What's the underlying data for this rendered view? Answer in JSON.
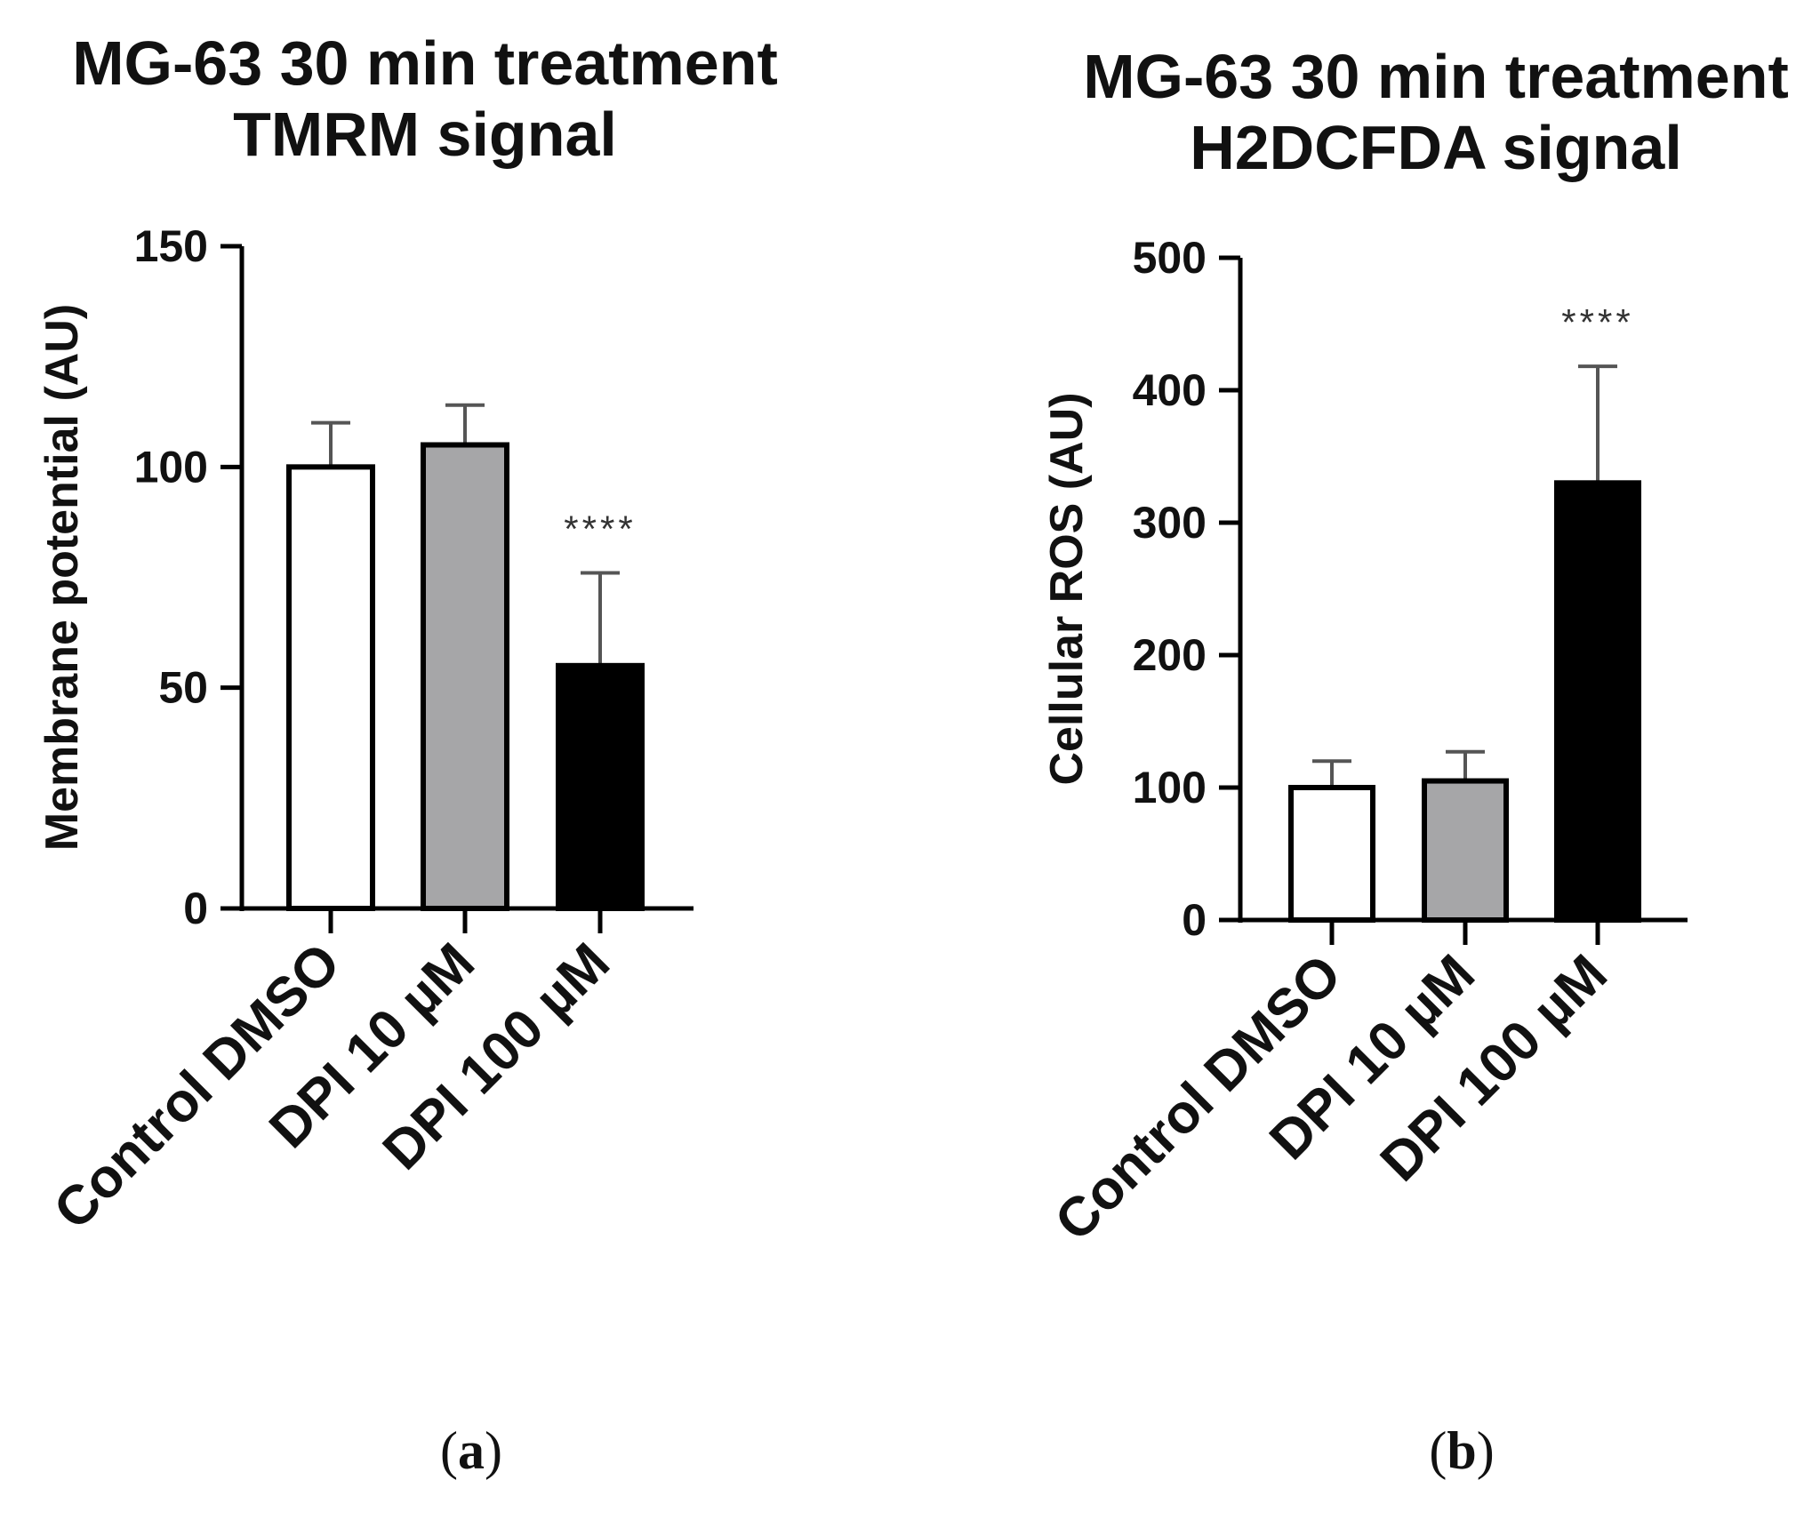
{
  "chart_data": [
    {
      "id": "a",
      "type": "bar",
      "title_lines": [
        "MG-63 30 min treatment",
        "TMRM signal"
      ],
      "xlabel": "",
      "ylabel": "Membrane potential (AU)",
      "ylim": [
        0,
        150
      ],
      "yticks": [
        0,
        50,
        100,
        150
      ],
      "categories": [
        "Control DMSO",
        "DPI 10 µM",
        "DPI 100 µM"
      ],
      "values": [
        100,
        105,
        55
      ],
      "errors": [
        10,
        9,
        21
      ],
      "bar_colors": [
        "#ffffff",
        "#a6a6a8",
        "#000000"
      ],
      "significance": [
        "",
        "",
        "****"
      ],
      "panel_label": "a"
    },
    {
      "id": "b",
      "type": "bar",
      "title_lines": [
        "MG-63 30 min treatment",
        "H2DCFDA signal"
      ],
      "xlabel": "",
      "ylabel": "Cellular ROS (AU)",
      "ylim": [
        0,
        500
      ],
      "yticks": [
        0,
        100,
        200,
        300,
        400,
        500
      ],
      "categories": [
        "Control DMSO",
        "DPI 10 µM",
        "DPI 100 µM"
      ],
      "values": [
        100,
        105,
        330
      ],
      "errors": [
        20,
        22,
        88
      ],
      "bar_colors": [
        "#ffffff",
        "#a6a6a8",
        "#000000"
      ],
      "significance": [
        "",
        "",
        "****"
      ],
      "panel_label": "b"
    }
  ]
}
